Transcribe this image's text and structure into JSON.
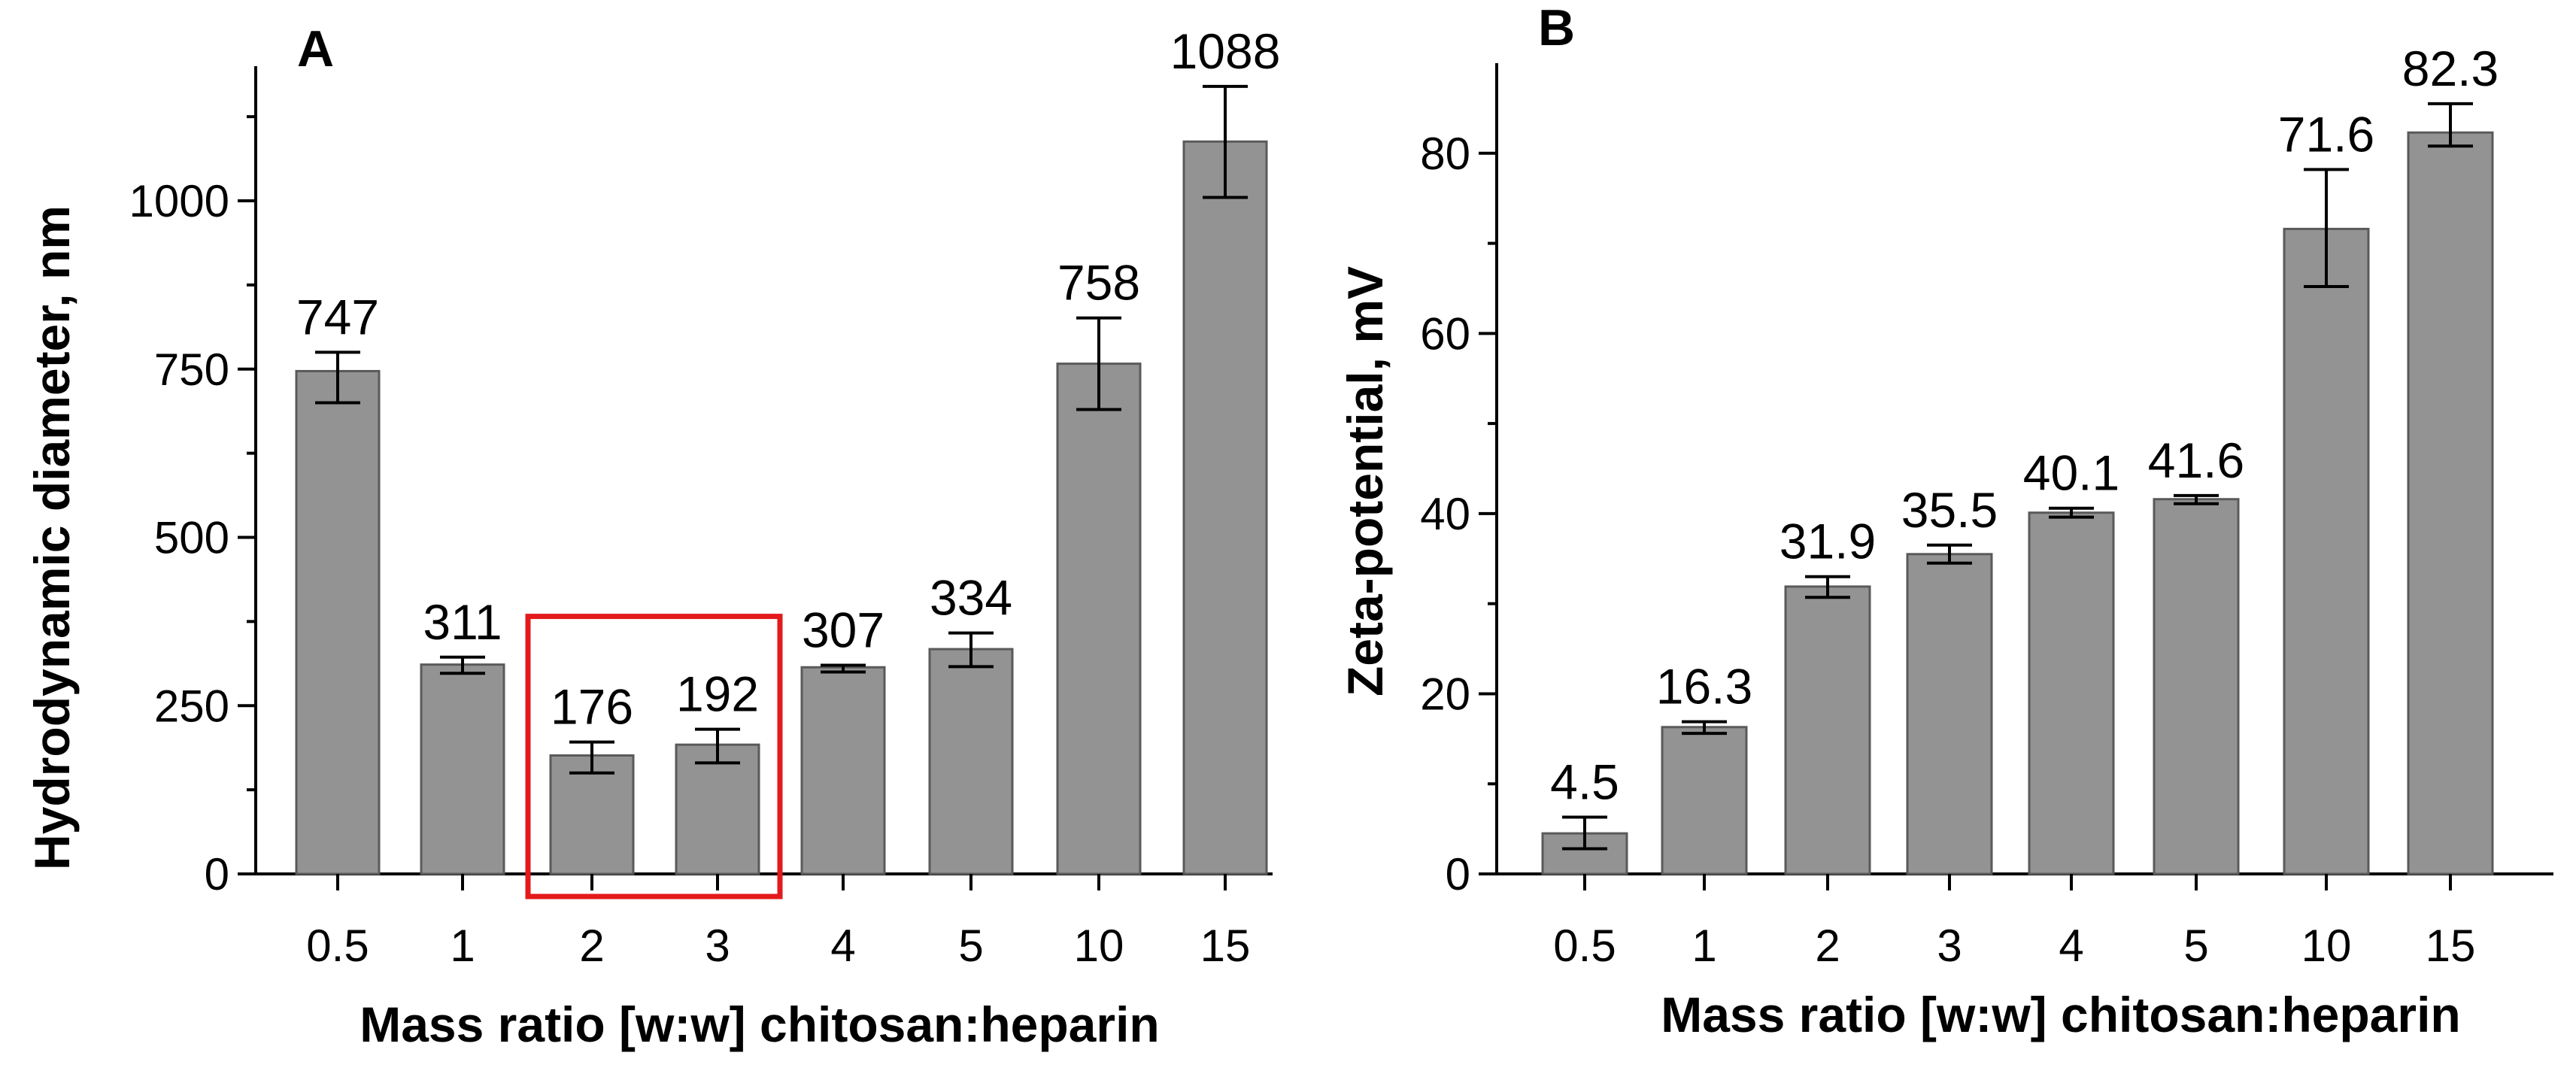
{
  "chart_data": [
    {
      "type": "bar",
      "panel": "A",
      "title": "",
      "xlabel": "Mass ratio [w:w] chitosan:heparin",
      "ylabel": "Hydrodynamic diameter, nm",
      "categories": [
        "0.5",
        "1",
        "2",
        "3",
        "4",
        "5",
        "10",
        "15"
      ],
      "values": [
        747,
        311,
        176,
        192,
        307,
        334,
        758,
        1088
      ],
      "data_labels": [
        "747",
        "311",
        "176",
        "192",
        "307",
        "334",
        "758",
        "1088"
      ],
      "error_low": [
        700,
        298,
        150,
        165,
        300,
        308,
        690,
        1005
      ],
      "error_high": [
        775,
        322,
        196,
        215,
        310,
        358,
        826,
        1170
      ],
      "ylim": [
        0,
        1200
      ],
      "yticks": [
        0,
        250,
        500,
        750,
        1000
      ],
      "ytick_labels": [
        "0",
        "250",
        "500",
        "750",
        "1000"
      ],
      "highlight": {
        "categories": [
          "2",
          "3"
        ],
        "color": "#e31a1c"
      },
      "bar_color": "#939393"
    },
    {
      "type": "bar",
      "panel": "B",
      "title": "",
      "xlabel": "Mass ratio [w:w] chitosan:heparin",
      "ylabel": "Zeta-potential, mV",
      "categories": [
        "0.5",
        "1",
        "2",
        "3",
        "4",
        "5",
        "10",
        "15"
      ],
      "values": [
        4.5,
        16.3,
        31.9,
        35.5,
        40.1,
        41.6,
        71.6,
        82.3
      ],
      "data_labels": [
        "4.5",
        "16.3",
        "31.9",
        "35.5",
        "40.1",
        "41.6",
        "71.6",
        "82.3"
      ],
      "error_low": [
        2.8,
        15.6,
        30.7,
        34.5,
        39.6,
        41.1,
        65.2,
        80.8
      ],
      "error_high": [
        6.3,
        16.9,
        33.0,
        36.5,
        40.6,
        42.0,
        78.2,
        85.5
      ],
      "ylim": [
        0,
        90
      ],
      "yticks": [
        0,
        20,
        40,
        60,
        80
      ],
      "ytick_labels": [
        "0",
        "20",
        "40",
        "60",
        "80"
      ],
      "bar_color": "#939393"
    }
  ]
}
